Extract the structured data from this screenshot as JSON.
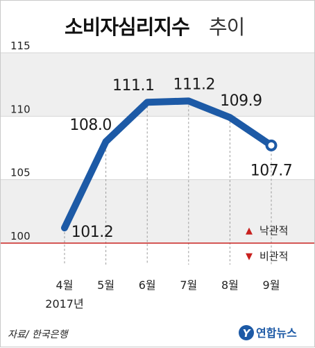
{
  "title": {
    "main": "소비자심리지수",
    "sub": "추이"
  },
  "source": "자료/ 한국은행",
  "logo": {
    "text": "연합뉴스",
    "mark": "Y"
  },
  "colors": {
    "line": "#1d5aa6",
    "marker_fill": "#ffffff",
    "threshold": "#c8201e",
    "band": "#efefef",
    "up_arrow": "#c8201e",
    "down_arrow": "#c8201e"
  },
  "legend": {
    "up": {
      "symbol": "▲",
      "label": "낙관적"
    },
    "down": {
      "symbol": "▼",
      "label": "비관적"
    }
  },
  "chart_data": {
    "type": "line",
    "title": "소비자심리지수 추이",
    "categories": [
      "4월",
      "5월",
      "6월",
      "7월",
      "8월",
      "9월"
    ],
    "x_year_label": "2017년",
    "values": [
      101.2,
      108.0,
      111.1,
      111.2,
      109.9,
      107.7
    ],
    "value_labels": [
      "101.2",
      "108.0",
      "111.1",
      "111.2",
      "109.9",
      "107.7"
    ],
    "ylim": [
      100,
      115
    ],
    "yticks": [
      "100",
      "105",
      "110",
      "115"
    ],
    "threshold": 100,
    "end_marker": "open-circle"
  }
}
